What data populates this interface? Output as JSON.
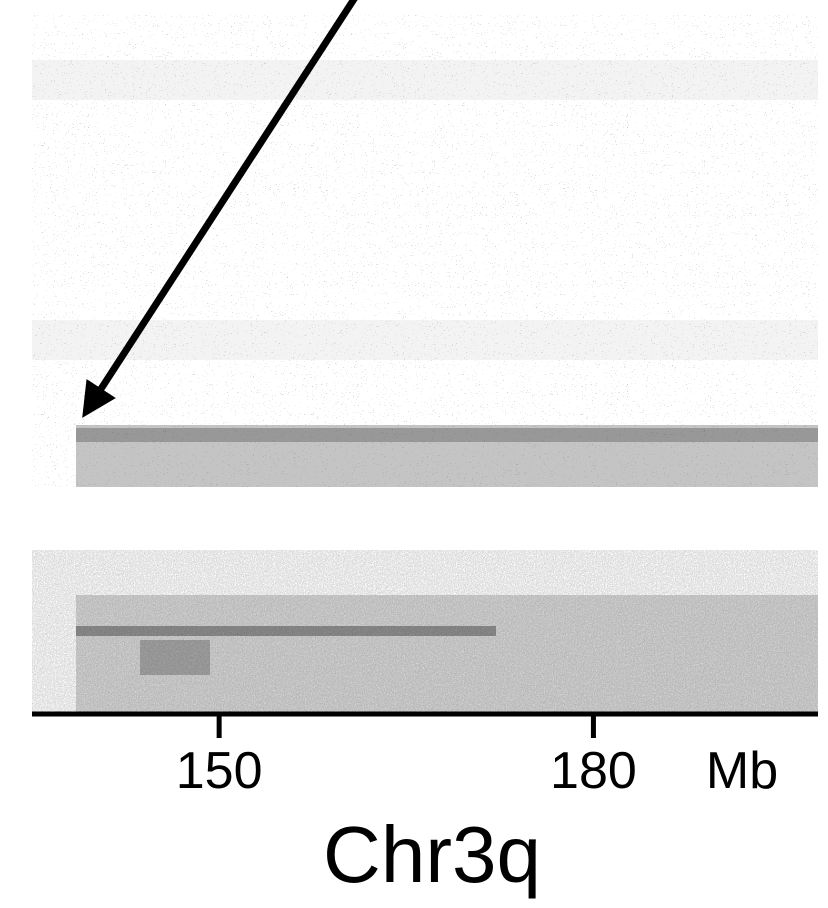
{
  "chart_data": {
    "type": "heatmap",
    "xlabel": "Chr3q",
    "x_unit": "Mb",
    "xlim": [
      135,
      198
    ],
    "xticks": [
      150,
      180
    ]
  }
}
